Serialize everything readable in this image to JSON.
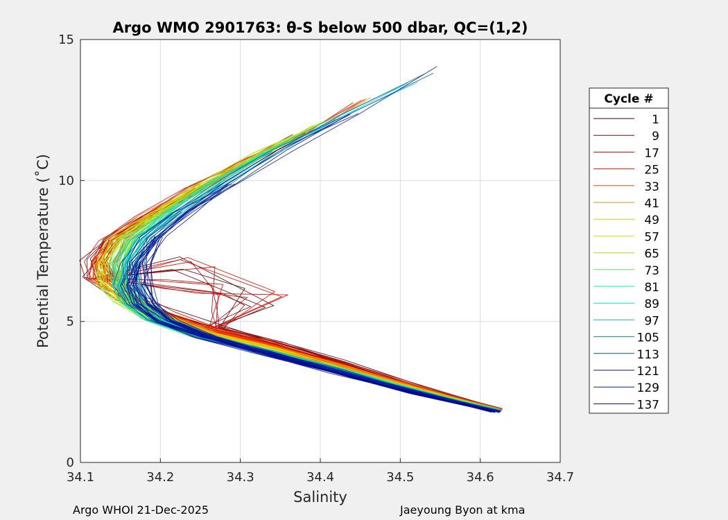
{
  "chart_data": {
    "type": "line",
    "title": "Argo WMO 2901763: θ-S below 500 dbar,  QC=(1,2)",
    "xlabel": "Salinity",
    "ylabel": "Potential Temperature (˚C)",
    "xlim": [
      34.1,
      34.7
    ],
    "ylim": [
      0,
      15
    ],
    "xticks": [
      "34.1",
      "34.2",
      "34.3",
      "34.4",
      "34.5",
      "34.6",
      "34.7"
    ],
    "yticks": [
      "0",
      "5",
      "10",
      "15"
    ],
    "grid": true,
    "legend_title": "Cycle #",
    "legend_placement": "right-outside",
    "series": [
      {
        "name": "1",
        "color": "#400000"
      },
      {
        "name": "9",
        "color": "#8b0000"
      },
      {
        "name": "17",
        "color": "#d40000"
      },
      {
        "name": "25",
        "color": "#e81400"
      },
      {
        "name": "33",
        "color": "#f04a00"
      },
      {
        "name": "41",
        "color": "#f28c00"
      },
      {
        "name": "49",
        "color": "#e6c800"
      },
      {
        "name": "57",
        "color": "#d6e600"
      },
      {
        "name": "65",
        "color": "#a0ee20"
      },
      {
        "name": "73",
        "color": "#50f050"
      },
      {
        "name": "81",
        "color": "#20e690"
      },
      {
        "name": "89",
        "color": "#10e0c0"
      },
      {
        "name": "97",
        "color": "#10c0e0"
      },
      {
        "name": "105",
        "color": "#108a8a"
      },
      {
        "name": "113",
        "color": "#0050c0"
      },
      {
        "name": "121",
        "color": "#101080"
      },
      {
        "name": "129",
        "color": "#0020a0"
      },
      {
        "name": "137",
        "color": "#000090"
      }
    ]
  },
  "footer": {
    "left": "Argo WHOI 21-Dec-2025",
    "right": "Jaeyoung Byon at kma"
  }
}
